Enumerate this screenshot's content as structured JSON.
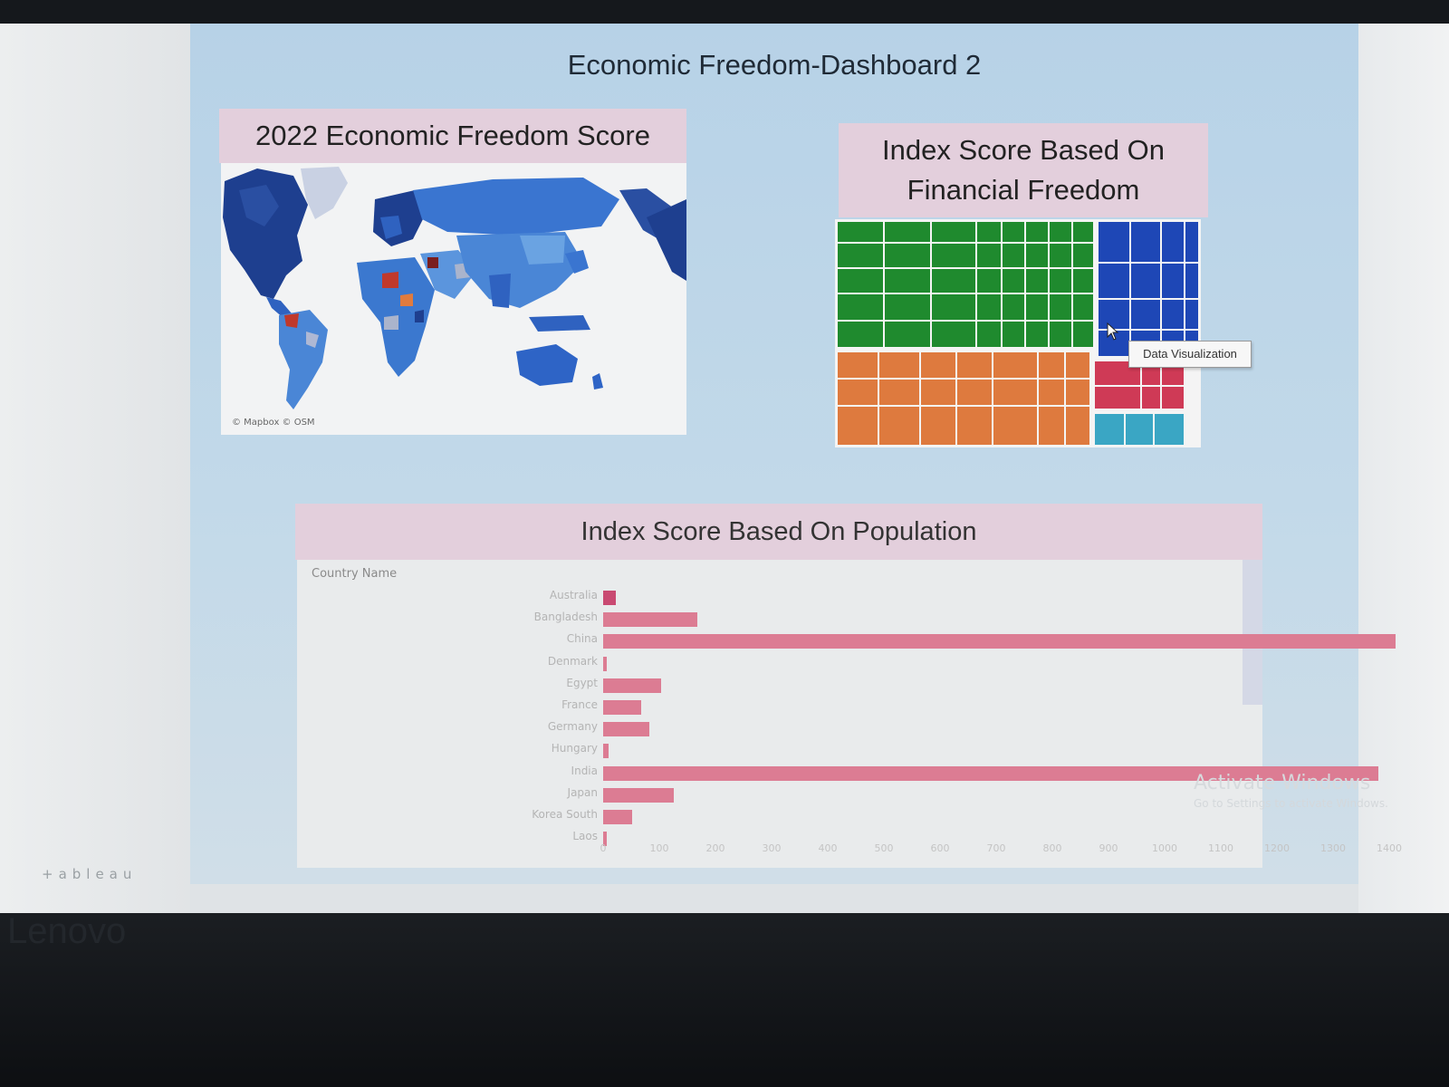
{
  "dashboard": {
    "title": "Economic Freedom-Dashboard 2"
  },
  "map_panel": {
    "title": "2022 Economic Freedom Score",
    "credit": "© Mapbox  © OSM"
  },
  "treemap_panel": {
    "title_line1": "Index Score Based On",
    "title_line2": "Financial Freedom",
    "tooltip": "Data Visualization",
    "colors": {
      "green": "#1f8a2e",
      "orange": "#de7a3e",
      "blue": "#1e47b6",
      "red": "#cf3a56",
      "teal": "#3aa6c4"
    }
  },
  "population_panel": {
    "title": "Index Score Based On Population",
    "row_header": "Country Name",
    "bar_color": "#dc7c93"
  },
  "chart_data": {
    "type": "bar",
    "orientation": "horizontal",
    "categories": [
      "Australia",
      "Bangladesh",
      "China",
      "Denmark",
      "Egypt",
      "France",
      "Germany",
      "Hungary",
      "India",
      "Japan",
      "Korea South",
      "Laos"
    ],
    "values": [
      23,
      167,
      1412,
      6,
      104,
      68,
      83,
      10,
      1380,
      126,
      52,
      7
    ],
    "xlim": [
      0,
      1400
    ],
    "xticks": [
      "0",
      "100",
      "200",
      "300",
      "400",
      "500",
      "600",
      "700",
      "800",
      "900",
      "1000",
      "1100",
      "1200",
      "1300",
      "1400"
    ],
    "title": "Index Score Based On Population",
    "ylabel": "Country Name"
  },
  "footer": {
    "tableau_logo": "+ableau",
    "activate_title": "Activate Windows",
    "activate_sub": "Go to Settings to activate Windows.",
    "laptop_brand": "Lenovo"
  }
}
